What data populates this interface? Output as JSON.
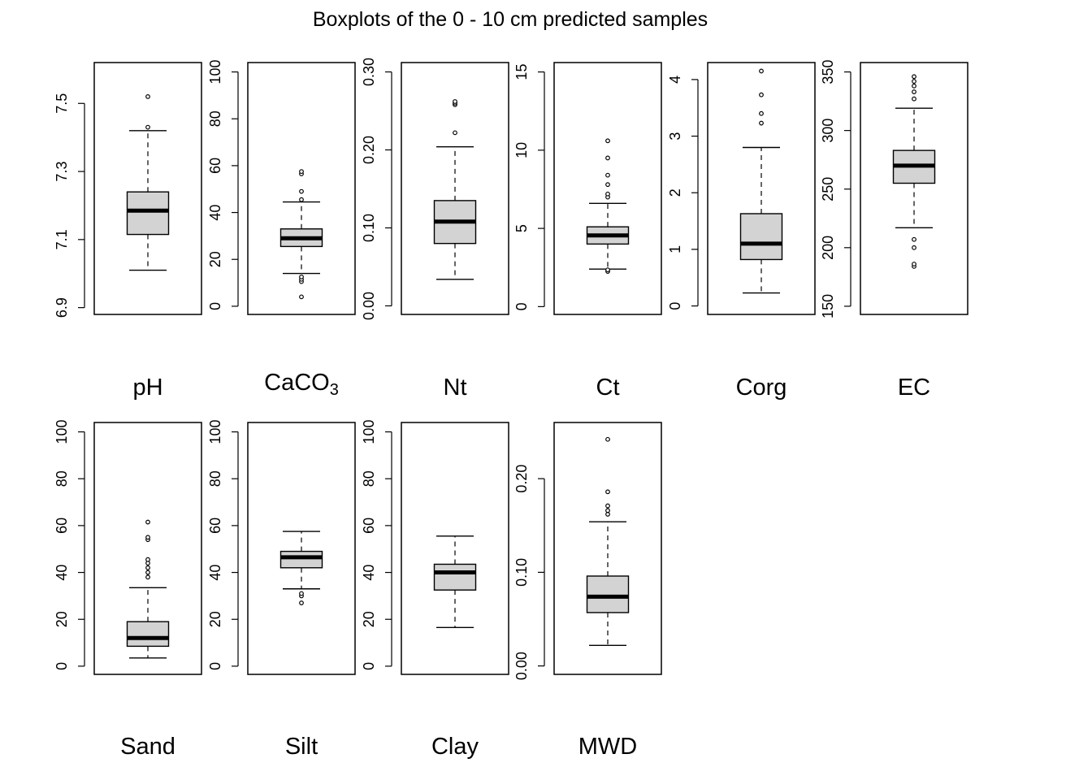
{
  "chart_data": {
    "type": "boxplot",
    "title": "Boxplots of the 0 - 10 cm predicted samples",
    "panels": [
      {
        "label": "pH",
        "sub": "",
        "ticks": [
          "6.9",
          "7.1",
          "7.3",
          "7.5"
        ],
        "tick_values": [
          6.9,
          7.1,
          7.3,
          7.5
        ],
        "ylim": [
          6.88,
          7.62
        ],
        "box": {
          "whisker_low": 7.01,
          "q1": 7.115,
          "median": 7.185,
          "q3": 7.24,
          "whisker_high": 7.42
        },
        "outliers": [
          7.43,
          7.52
        ]
      },
      {
        "label": "CaCO",
        "sub": "3",
        "ticks": [
          "0",
          "20",
          "40",
          "60",
          "80",
          "100"
        ],
        "tick_values": [
          0,
          20,
          40,
          60,
          80,
          100
        ],
        "ylim": [
          -3.5,
          104
        ],
        "box": {
          "whisker_low": 14,
          "q1": 25.5,
          "median": 29,
          "q3": 33,
          "whisker_high": 44.5
        },
        "outliers": [
          4,
          10.5,
          11.5,
          12.5,
          45.5,
          49,
          56.5,
          57.5
        ]
      },
      {
        "label": "Nt",
        "sub": "",
        "ticks": [
          "0.00",
          "0.10",
          "0.20",
          "0.30"
        ],
        "tick_values": [
          0,
          0.1,
          0.2,
          0.3
        ],
        "ylim": [
          -0.011,
          0.312
        ],
        "box": {
          "whisker_low": 0.034,
          "q1": 0.08,
          "median": 0.108,
          "q3": 0.135,
          "whisker_high": 0.204
        },
        "outliers": [
          0.222,
          0.258,
          0.26,
          0.262
        ]
      },
      {
        "label": "Ct",
        "sub": "",
        "ticks": [
          "0",
          "5",
          "10",
          "15"
        ],
        "tick_values": [
          0,
          5,
          10,
          15
        ],
        "ylim": [
          -0.5,
          15.6
        ],
        "box": {
          "whisker_low": 2.4,
          "q1": 4.0,
          "median": 4.55,
          "q3": 5.1,
          "whisker_high": 6.6
        },
        "outliers": [
          2.25,
          2.35,
          7.0,
          7.2,
          7.8,
          8.4,
          9.5,
          10.6
        ]
      },
      {
        "label": "Corg",
        "sub": "",
        "ticks": [
          "0",
          "1",
          "2",
          "3",
          "4"
        ],
        "tick_values": [
          0,
          1,
          2,
          3,
          4
        ],
        "ylim": [
          -0.15,
          4.3
        ],
        "box": {
          "whisker_low": 0.23,
          "q1": 0.82,
          "median": 1.1,
          "q3": 1.63,
          "whisker_high": 2.8
        },
        "outliers": [
          3.23,
          3.4,
          3.73,
          4.15
        ]
      },
      {
        "label": "EC",
        "sub": "",
        "ticks": [
          "150",
          "200",
          "250",
          "300",
          "350"
        ],
        "tick_values": [
          150,
          200,
          250,
          300,
          350
        ],
        "ylim": [
          143,
          358
        ],
        "box": {
          "whisker_low": 217,
          "q1": 255,
          "median": 270,
          "q3": 283,
          "whisker_high": 319
        },
        "outliers": [
          184,
          186,
          200,
          207,
          327,
          333,
          338,
          342,
          346
        ]
      },
      {
        "label": "Sand",
        "sub": "",
        "ticks": [
          "0",
          "20",
          "40",
          "60",
          "80",
          "100"
        ],
        "tick_values": [
          0,
          20,
          40,
          60,
          80,
          100
        ],
        "ylim": [
          -3.5,
          104
        ],
        "box": {
          "whisker_low": 3.5,
          "q1": 8.5,
          "median": 12,
          "q3": 19,
          "whisker_high": 33.5
        },
        "outliers": [
          38,
          40,
          42,
          44,
          45.5,
          54,
          55,
          61.5
        ]
      },
      {
        "label": "Silt",
        "sub": "",
        "ticks": [
          "0",
          "20",
          "40",
          "60",
          "80",
          "100"
        ],
        "tick_values": [
          0,
          20,
          40,
          60,
          80,
          100
        ],
        "ylim": [
          -3.5,
          104
        ],
        "box": {
          "whisker_low": 33,
          "q1": 42,
          "median": 46.5,
          "q3": 49,
          "whisker_high": 57.5
        },
        "outliers": [
          27,
          30,
          31
        ]
      },
      {
        "label": "Clay",
        "sub": "",
        "ticks": [
          "0",
          "20",
          "40",
          "60",
          "80",
          "100"
        ],
        "tick_values": [
          0,
          20,
          40,
          60,
          80,
          100
        ],
        "ylim": [
          -3.5,
          104
        ],
        "box": {
          "whisker_low": 16.5,
          "q1": 32.5,
          "median": 40,
          "q3": 43.5,
          "whisker_high": 55.5
        },
        "outliers": []
      },
      {
        "label": "MWD",
        "sub": "",
        "ticks": [
          "0.00",
          "0.10",
          "0.20"
        ],
        "tick_values": [
          0,
          0.1,
          0.2
        ],
        "ylim": [
          -0.009,
          0.26
        ],
        "box": {
          "whisker_low": 0.022,
          "q1": 0.057,
          "median": 0.074,
          "q3": 0.096,
          "whisker_high": 0.154
        },
        "outliers": [
          0.162,
          0.166,
          0.171,
          0.186,
          0.242
        ]
      }
    ]
  }
}
